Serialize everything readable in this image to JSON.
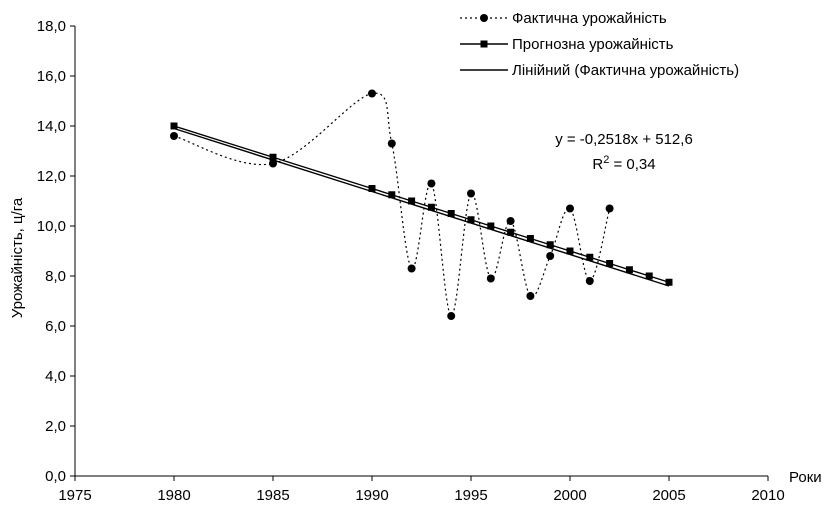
{
  "chart_data": {
    "type": "line",
    "title": "",
    "xlabel": "Роки",
    "ylabel": "Урожайність, ц/га",
    "xlim": [
      1975,
      2010
    ],
    "ylim": [
      0,
      18
    ],
    "x_ticks": [
      "1975",
      "1980",
      "1985",
      "1990",
      "1995",
      "2000",
      "2005",
      "2010"
    ],
    "x_tick_values": [
      1975,
      1980,
      1985,
      1990,
      1995,
      2000,
      2005,
      2010
    ],
    "y_ticks": [
      "0,0",
      "2,0",
      "4,0",
      "6,0",
      "8,0",
      "10,0",
      "12,0",
      "14,0",
      "16,0",
      "18,0"
    ],
    "y_tick_values": [
      0,
      2,
      4,
      6,
      8,
      10,
      12,
      14,
      16,
      18
    ],
    "grid": false,
    "legend_position": "top-right",
    "series": [
      {
        "name": "Фактична урожайність",
        "style": "dotted-smooth",
        "marker": "circle",
        "color": "#000000",
        "points": [
          [
            1980,
            13.6
          ],
          [
            1985,
            12.5
          ],
          [
            1990,
            15.3
          ],
          [
            1991,
            13.3
          ],
          [
            1992,
            8.3
          ],
          [
            1993,
            11.7
          ],
          [
            1994,
            6.4
          ],
          [
            1995,
            11.3
          ],
          [
            1996,
            7.9
          ],
          [
            1997,
            10.2
          ],
          [
            1998,
            7.2
          ],
          [
            1999,
            8.8
          ],
          [
            2000,
            10.7
          ],
          [
            2001,
            7.8
          ],
          [
            2002,
            10.7
          ]
        ]
      },
      {
        "name": "Прогнозна урожайність",
        "style": "solid",
        "marker": "square",
        "color": "#000000",
        "points": [
          [
            1980,
            14.0
          ],
          [
            1985,
            12.75
          ],
          [
            1990,
            11.5
          ],
          [
            1991,
            11.25
          ],
          [
            1992,
            11.0
          ],
          [
            1993,
            10.75
          ],
          [
            1994,
            10.5
          ],
          [
            1995,
            10.25
          ],
          [
            1996,
            10.0
          ],
          [
            1997,
            9.75
          ],
          [
            1998,
            9.5
          ],
          [
            1999,
            9.25
          ],
          [
            2000,
            9.0
          ],
          [
            2001,
            8.75
          ],
          [
            2002,
            8.5
          ],
          [
            2003,
            8.25
          ],
          [
            2004,
            8.0
          ],
          [
            2005,
            7.75
          ]
        ]
      },
      {
        "name": "Лінійний (Фактична урожайність)",
        "style": "solid",
        "marker": "none",
        "color": "#000000",
        "points": [
          [
            1980,
            13.9
          ],
          [
            2005,
            7.6
          ]
        ]
      }
    ],
    "trendline_equation": "y = -0,2518x + 512,6",
    "r_squared_label": "R",
    "r_squared_sup": "2",
    "r_squared_value": " = 0,34"
  }
}
